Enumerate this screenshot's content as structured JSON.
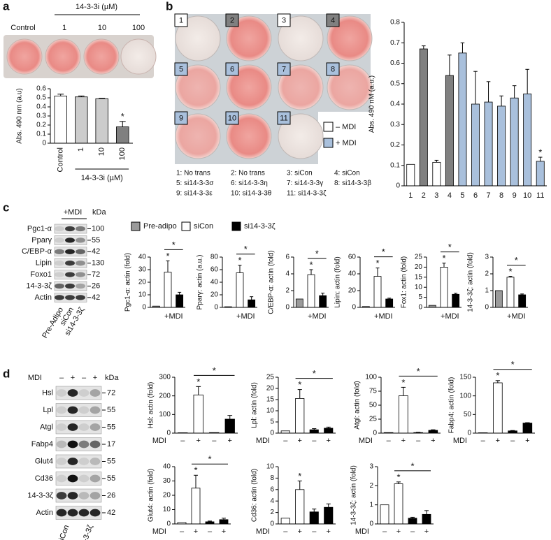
{
  "panels": [
    "a",
    "b",
    "c",
    "d"
  ],
  "plate_a": {
    "control": "Control",
    "group": "14-3-3i (µM)",
    "doses": [
      "1",
      "10",
      "100"
    ]
  },
  "plate_b": {
    "wells": [
      "1",
      "2",
      "3",
      "4",
      "5",
      "6",
      "7",
      "8",
      "9",
      "10",
      "11"
    ],
    "key": [
      "1: No trans",
      "2: No trans",
      "3: siCon",
      "4: siCon",
      "5: si14-3-3σ",
      "6: si14-3-3η",
      "7: si14-3-3γ",
      "8: si14-3-3β",
      "9: si14-3-3ε",
      "10: si14-3-3θ",
      "11: si14-3-3ζ"
    ]
  },
  "blot_c": {
    "header": "+MDI",
    "kda": "kDa",
    "proteins": [
      {
        "name": "Pgc1-α",
        "kda": 100
      },
      {
        "name": "Pparγ",
        "kda": 55
      },
      {
        "name": "C/EBP-α",
        "kda": 42
      },
      {
        "name": "Lipin",
        "kda": 130
      },
      {
        "name": "Foxo1",
        "kda": 72
      },
      {
        "name": "14-3-3ζ",
        "kda": 26
      },
      {
        "name": "Actin",
        "kda": 42
      }
    ],
    "lanes": [
      "Pre-Adipo",
      "siCon",
      "si14-3-3ζ"
    ]
  },
  "legend_c": [
    {
      "name": "Pre-adipo",
      "color": "#9a9a9a"
    },
    {
      "name": "siCon",
      "color": "#ffffff"
    },
    {
      "name": "si14-3-3ζ",
      "color": "#000000"
    }
  ],
  "blot_d": {
    "treatment": "MDI",
    "signs": [
      "–",
      "+",
      "–",
      "+"
    ],
    "kda": "kDa",
    "proteins": [
      {
        "name": "Hsl",
        "kda": 72
      },
      {
        "name": "Lpl",
        "kda": 55
      },
      {
        "name": "Atgl",
        "kda": 55
      },
      {
        "name": "Fabp4",
        "kda": 17
      },
      {
        "name": "Glut4",
        "kda": 55
      },
      {
        "name": "Cd36",
        "kda": 55
      },
      {
        "name": "14-3-3ζ",
        "kda": 26
      },
      {
        "name": "Actin",
        "kda": 42
      }
    ],
    "lanes": [
      "siCon",
      "si14-3-3ζ"
    ]
  },
  "chart_data": [
    {
      "type": "bar",
      "ylabel": "Abs. 490 nm (a.u)",
      "xlabel": "14-3-3i (µM)",
      "categories": [
        "Control",
        "1",
        "10",
        "100"
      ],
      "values": [
        0.52,
        0.51,
        0.49,
        0.18
      ],
      "errors": [
        0.02,
        0.01,
        0.005,
        0.06
      ],
      "colors": [
        "#ffffff",
        "#cccccc",
        "#cccccc",
        "#808080"
      ],
      "ylim": [
        0,
        0.6
      ],
      "yticks": [
        0,
        0.1,
        0.2,
        0.3,
        0.4,
        0.5,
        0.6
      ],
      "annotations": [
        "*"
      ]
    },
    {
      "type": "bar",
      "ylabel": "Abs. 490 nM (a.u.)",
      "categories": [
        "1",
        "2",
        "3",
        "4",
        "5",
        "6",
        "7",
        "8",
        "9",
        "10",
        "11"
      ],
      "values": [
        0.105,
        0.67,
        0.115,
        0.54,
        0.65,
        0.4,
        0.41,
        0.39,
        0.43,
        0.45,
        0.12
      ],
      "errors": [
        null,
        0.015,
        0.01,
        0.1,
        0.05,
        0.16,
        0.1,
        0.05,
        0.06,
        0.12,
        0.02
      ],
      "colors": [
        "#ffffff",
        "#808080",
        "#ffffff",
        "#808080",
        "#a9c0dc",
        "#a9c0dc",
        "#a9c0dc",
        "#a9c0dc",
        "#a9c0dc",
        "#a9c0dc",
        "#a9c0dc"
      ],
      "ylim": [
        0,
        0.8
      ],
      "yticks": [
        0,
        0.1,
        0.2,
        0.3,
        0.4,
        0.5,
        0.6,
        0.7,
        0.8
      ],
      "legend": [
        {
          "name": "– MDI",
          "color": "#ffffff"
        },
        {
          "name": "+ MDI",
          "color": "#a9c0dc"
        }
      ],
      "annotations": [
        "*"
      ]
    },
    {
      "type": "bar",
      "ylabel": "Pgc1-α: actin (fold)",
      "xlabel": "+MDI",
      "categories": [
        null,
        null,
        null
      ],
      "values": [
        1,
        28,
        10
      ],
      "errors": [
        null,
        9,
        2
      ],
      "colors": [
        "#9a9a9a",
        "#ffffff",
        "#000000"
      ],
      "ylim": [
        0,
        40
      ],
      "yticks": [
        0,
        10,
        20,
        30,
        40
      ],
      "annotations": [
        "*",
        "*"
      ]
    },
    {
      "type": "bar",
      "ylabel": "Pparγ: actin (a.u.)",
      "xlabel": "+MDI",
      "categories": [
        null,
        null,
        null
      ],
      "values": [
        1,
        55,
        12
      ],
      "errors": [
        null,
        12,
        5
      ],
      "colors": [
        "#9a9a9a",
        "#ffffff",
        "#000000"
      ],
      "ylim": [
        0,
        80
      ],
      "yticks": [
        0,
        20,
        40,
        60,
        80
      ],
      "annotations": [
        "*",
        "*"
      ]
    },
    {
      "type": "bar",
      "ylabel": "C/EBP-α: actin (fold)",
      "xlabel": "+MDI",
      "categories": [
        null,
        null,
        null
      ],
      "values": [
        1,
        3.9,
        1.4
      ],
      "errors": [
        null,
        0.6,
        0.3
      ],
      "colors": [
        "#9a9a9a",
        "#ffffff",
        "#000000"
      ],
      "ylim": [
        0,
        6
      ],
      "yticks": [
        0,
        2,
        4,
        6
      ],
      "annotations": [
        "*",
        "*"
      ]
    },
    {
      "type": "bar",
      "ylabel": "Lipin: actin (fold)",
      "xlabel": "+MDI",
      "categories": [
        null,
        null,
        null
      ],
      "values": [
        1,
        37,
        10
      ],
      "errors": [
        null,
        10,
        1
      ],
      "colors": [
        "#9a9a9a",
        "#ffffff",
        "#000000"
      ],
      "ylim": [
        0,
        60
      ],
      "yticks": [
        0,
        20,
        40,
        60
      ],
      "annotations": [
        "*",
        "*"
      ]
    },
    {
      "type": "bar",
      "ylabel": "Fox1: actin (fold)",
      "xlabel": "+MDI",
      "categories": [
        null,
        null,
        null
      ],
      "values": [
        1,
        20,
        6.5
      ],
      "errors": [
        null,
        2,
        0.5
      ],
      "colors": [
        "#9a9a9a",
        "#ffffff",
        "#000000"
      ],
      "ylim": [
        0,
        25
      ],
      "yticks": [
        0,
        5,
        10,
        15,
        20,
        25
      ],
      "annotations": [
        "*",
        "*"
      ]
    },
    {
      "type": "bar",
      "ylabel": "14-3-3ζ: actin (fold)",
      "xlabel": "+MDI",
      "categories": [
        null,
        null,
        null
      ],
      "values": [
        1,
        1.8,
        0.75
      ],
      "errors": [
        null,
        0.05,
        0.05
      ],
      "colors": [
        "#9a9a9a",
        "#ffffff",
        "#000000"
      ],
      "ylim": [
        0,
        3
      ],
      "yticks": [
        0,
        1,
        2,
        3
      ],
      "annotations": [
        "*",
        "*"
      ]
    },
    {
      "type": "bar",
      "ylabel": "Hsl: actin (fold)",
      "xlabel": "MDI",
      "categories": [
        "–",
        "+",
        "–",
        "+"
      ],
      "values": [
        2,
        205,
        3,
        75
      ],
      "errors": [
        null,
        45,
        null,
        20
      ],
      "colors": [
        "#ffffff",
        "#ffffff",
        "#000000",
        "#000000"
      ],
      "ylim": [
        0,
        300
      ],
      "yticks": [
        0,
        100,
        200,
        300
      ],
      "annotations": [
        "*",
        "*"
      ]
    },
    {
      "type": "bar",
      "ylabel": "Lpl: actin (fold)",
      "xlabel": "MDI",
      "categories": [
        "–",
        "+",
        "–",
        "+"
      ],
      "values": [
        1,
        15.5,
        1.5,
        2.2
      ],
      "errors": [
        null,
        4,
        0.5,
        0.5
      ],
      "colors": [
        "#ffffff",
        "#ffffff",
        "#000000",
        "#000000"
      ],
      "ylim": [
        0,
        25
      ],
      "yticks": [
        0,
        5,
        10,
        15,
        20,
        25
      ],
      "annotations": [
        "*",
        "*"
      ]
    },
    {
      "type": "bar",
      "ylabel": "Atgl: actin (fold)",
      "xlabel": "MDI",
      "categories": [
        "–",
        "+",
        "–",
        "+"
      ],
      "values": [
        1,
        67,
        1,
        5
      ],
      "errors": [
        null,
        15,
        0.5,
        1
      ],
      "colors": [
        "#ffffff",
        "#ffffff",
        "#000000",
        "#000000"
      ],
      "ylim": [
        0,
        100
      ],
      "yticks": [
        0,
        25,
        50,
        75,
        100
      ],
      "annotations": [
        "*",
        "*"
      ]
    },
    {
      "type": "bar",
      "ylabel": "Fabp4: actin (fold)",
      "xlabel": "MDI",
      "categories": [
        "–",
        "+",
        "–",
        "+"
      ],
      "values": [
        1,
        135,
        6,
        27
      ],
      "errors": [
        null,
        6,
        1,
        1
      ],
      "colors": [
        "#ffffff",
        "#ffffff",
        "#000000",
        "#000000"
      ],
      "ylim": [
        0,
        150
      ],
      "yticks": [
        0,
        50,
        100,
        150
      ],
      "annotations": [
        "*",
        "*"
      ]
    },
    {
      "type": "bar",
      "ylabel": "Glut4: actin (fold)",
      "xlabel": "MDI",
      "categories": [
        "–",
        "+",
        "–",
        "+"
      ],
      "values": [
        1,
        25,
        1.5,
        3
      ],
      "errors": [
        null,
        9,
        0.5,
        1
      ],
      "colors": [
        "#ffffff",
        "#ffffff",
        "#000000",
        "#000000"
      ],
      "ylim": [
        0,
        40
      ],
      "yticks": [
        0,
        10,
        20,
        30,
        40
      ],
      "annotations": [
        "*",
        "*"
      ]
    },
    {
      "type": "bar",
      "ylabel": "Cd36: actin (fold)",
      "xlabel": "MDI",
      "categories": [
        "–",
        "+",
        "–",
        "+"
      ],
      "values": [
        1,
        6,
        2.1,
        2.9
      ],
      "errors": [
        null,
        1.5,
        0.5,
        0.6
      ],
      "colors": [
        "#ffffff",
        "#ffffff",
        "#000000",
        "#000000"
      ],
      "ylim": [
        0,
        10
      ],
      "yticks": [
        0,
        2,
        4,
        6,
        8,
        10
      ],
      "annotations": [
        "*"
      ]
    },
    {
      "type": "bar",
      "ylabel": "14-3-3ζ: actin (fold)",
      "xlabel": "MDI",
      "categories": [
        "–",
        "+",
        "–",
        "+"
      ],
      "values": [
        1,
        2.1,
        0.3,
        0.5
      ],
      "errors": [
        null,
        0.1,
        0.05,
        0.2
      ],
      "colors": [
        "#ffffff",
        "#ffffff",
        "#000000",
        "#000000"
      ],
      "ylim": [
        0,
        3
      ],
      "yticks": [
        0,
        1,
        2,
        3
      ],
      "annotations": [
        "*",
        "*"
      ]
    }
  ]
}
